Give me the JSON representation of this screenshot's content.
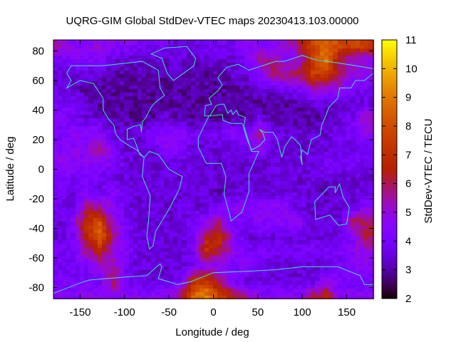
{
  "chart_data": {
    "type": "heatmap",
    "title": "UQRG-GIM Global StdDev-VTEC maps 20230413.103.00000",
    "xlabel": "Longitude / deg",
    "ylabel": "Latitude / deg",
    "colorbar_label": "StdDev-VTEC / TECU",
    "xlim": [
      -180,
      180
    ],
    "ylim": [
      -87.5,
      87.5
    ],
    "clim": [
      2,
      11
    ],
    "xticks": [
      -150,
      -100,
      -50,
      0,
      50,
      100,
      150
    ],
    "yticks": [
      -80,
      -60,
      -40,
      -20,
      0,
      20,
      40,
      60,
      80
    ],
    "cticks": [
      2,
      3,
      4,
      5,
      6,
      7,
      8,
      9,
      10,
      11
    ],
    "colormap": "black-purple-red-orange-yellow",
    "overlay": "coastlines",
    "overlay_color": "#40e0d0",
    "grid_lon": [
      -172.5,
      -157.5,
      -142.5,
      -127.5,
      -112.5,
      -97.5,
      -82.5,
      -67.5,
      -52.5,
      -37.5,
      -22.5,
      -7.5,
      7.5,
      22.5,
      37.5,
      52.5,
      67.5,
      82.5,
      97.5,
      112.5,
      127.5,
      142.5,
      157.5,
      172.5
    ],
    "grid_lat": [
      85,
      75,
      65,
      55,
      45,
      35,
      25,
      15,
      5,
      -5,
      -15,
      -25,
      -35,
      -45,
      -55,
      -65,
      -75,
      -85
    ],
    "values": [
      [
        5.5,
        4.5,
        4.5,
        5,
        4.5,
        4.5,
        4,
        4,
        4,
        3.5,
        3.5,
        4,
        4,
        4,
        4.5,
        4.5,
        4.5,
        5,
        6,
        8,
        8.5,
        8,
        8,
        7.5
      ],
      [
        4,
        4.5,
        4.5,
        4.5,
        3.5,
        3.5,
        3.5,
        3.5,
        3.5,
        3.5,
        3.5,
        3.5,
        3.5,
        3.5,
        4,
        5.5,
        5.5,
        4.5,
        5,
        7.5,
        9,
        6,
        5,
        5
      ],
      [
        3.5,
        3.5,
        3.5,
        3.5,
        3,
        3,
        3,
        3,
        3,
        3.5,
        3,
        3,
        3,
        3.5,
        3.5,
        4.5,
        6,
        6,
        6,
        7.5,
        7.5,
        6,
        5,
        4.5
      ],
      [
        3.5,
        3.5,
        3,
        3,
        3,
        3,
        3,
        3,
        3,
        3,
        3,
        3,
        3,
        3,
        3,
        3.5,
        3.5,
        4,
        4,
        5,
        5,
        5,
        4,
        4
      ],
      [
        4,
        4,
        3.5,
        3,
        3,
        3,
        3,
        3,
        3,
        3,
        3,
        3,
        3,
        3,
        3,
        3,
        3,
        3,
        3,
        3.5,
        3.5,
        3.5,
        3.5,
        3.5
      ],
      [
        4.5,
        4,
        3.5,
        3.5,
        3,
        3,
        3,
        3,
        3.5,
        3,
        3,
        3,
        3,
        3,
        3,
        3.5,
        3,
        3,
        3,
        3,
        3,
        3.5,
        4,
        5.5
      ],
      [
        4,
        4.5,
        4.5,
        4.5,
        3.5,
        3.5,
        3.5,
        4.5,
        4.5,
        4.5,
        4,
        4,
        4,
        4.5,
        4.5,
        5.5,
        4,
        3.5,
        3.5,
        3.5,
        3.5,
        4,
        4,
        4.5
      ],
      [
        4.5,
        4.5,
        4.5,
        6,
        4,
        3.5,
        3.5,
        3.5,
        4.5,
        4.5,
        3.5,
        3.5,
        3.5,
        3.5,
        4,
        5,
        3.5,
        3.5,
        3.5,
        3.5,
        3.5,
        3.5,
        3.5,
        4
      ],
      [
        4.5,
        4.5,
        4.5,
        4.5,
        4.5,
        3.5,
        3.5,
        3.5,
        3.5,
        3.5,
        3.5,
        3.5,
        3.5,
        3.5,
        3.5,
        3.5,
        3.5,
        3.5,
        3.5,
        3.5,
        4,
        4,
        4,
        4
      ],
      [
        4,
        4,
        4,
        4,
        3.5,
        3.5,
        3.5,
        3.5,
        3.5,
        3.5,
        3.5,
        3.5,
        3.5,
        3.5,
        3.5,
        3.5,
        3.5,
        3.5,
        3.5,
        3.5,
        3.5,
        3.5,
        3.5,
        3.5
      ],
      [
        4,
        3.5,
        4.5,
        3.5,
        4.5,
        3.5,
        3.5,
        3.5,
        3.5,
        3.5,
        3.5,
        3.5,
        3,
        3.5,
        3.5,
        3.5,
        3.5,
        3.5,
        3.5,
        3.5,
        3,
        3.5,
        3.5,
        3.5
      ],
      [
        4,
        3.5,
        5.5,
        5.5,
        4.5,
        3.5,
        3.5,
        3.5,
        3.5,
        3.5,
        3.5,
        3.5,
        4,
        4.5,
        4.5,
        4.5,
        4.5,
        4.5,
        3.5,
        3.5,
        3.5,
        3.5,
        3.5,
        4.5
      ],
      [
        3.5,
        4.5,
        7,
        8,
        5,
        4,
        3.5,
        3.5,
        3.5,
        3.5,
        4,
        4.5,
        5.5,
        4,
        4,
        4.5,
        4.5,
        4.5,
        4.5,
        3.5,
        3.5,
        3.5,
        6,
        6
      ],
      [
        3.5,
        4,
        6.5,
        8.5,
        6,
        4,
        3.5,
        3.5,
        3.5,
        3.5,
        4,
        6.5,
        7,
        4.5,
        3.5,
        3.5,
        3.5,
        3.5,
        3.5,
        3.5,
        3.5,
        3.5,
        4.5,
        6
      ],
      [
        4,
        4,
        5.5,
        6.5,
        5,
        4.5,
        3.5,
        3.5,
        3.5,
        3.5,
        4,
        7,
        6,
        5,
        4,
        4,
        4,
        4,
        4,
        4,
        4,
        4,
        4.5,
        5
      ],
      [
        4,
        4,
        4,
        5,
        5.5,
        4,
        3.5,
        3.5,
        3.5,
        3.5,
        4,
        4.5,
        4.5,
        4,
        4.5,
        4,
        3.5,
        3.5,
        3.5,
        3.5,
        3.5,
        4,
        4.5,
        4.5
      ],
      [
        4,
        4,
        4,
        4,
        6,
        4,
        3.5,
        3.5,
        3.5,
        4,
        7,
        7.5,
        6,
        4,
        3.5,
        3.5,
        3.5,
        3.5,
        3.5,
        3.5,
        5,
        4,
        4,
        4
      ],
      [
        4.5,
        4.5,
        4.5,
        4.5,
        4.5,
        4.5,
        4.5,
        4.5,
        4.5,
        6,
        8.5,
        9,
        7.5,
        6.5,
        5.5,
        4.5,
        4.5,
        4.5,
        4.5,
        6,
        6.5,
        4.5,
        4.5,
        4.5
      ]
    ]
  }
}
